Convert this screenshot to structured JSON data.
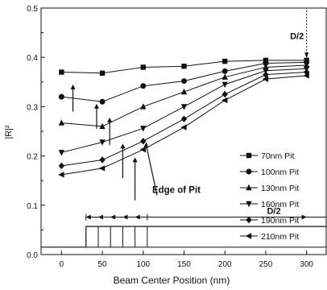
{
  "chart_data": {
    "type": "line",
    "title": "",
    "xlabel": "Beam Center Position (nm)",
    "ylabel": "|R|²",
    "xlim": [
      -25,
      325
    ],
    "ylim": [
      0.0,
      0.5
    ],
    "xticks": [
      0,
      50,
      100,
      150,
      200,
      250,
      300
    ],
    "yticks": [
      0.0,
      0.1,
      0.2,
      0.3,
      0.4,
      0.5
    ],
    "grid": false,
    "legend_position": "right",
    "x": [
      0,
      50,
      100,
      150,
      200,
      250,
      300
    ],
    "series": [
      {
        "name": "70nm  Pit",
        "marker": "square",
        "values": [
          0.37,
          0.368,
          0.38,
          0.382,
          0.392,
          0.394,
          0.394
        ]
      },
      {
        "name": "100nm Pit",
        "marker": "circle",
        "values": [
          0.32,
          0.31,
          0.342,
          0.352,
          0.372,
          0.388,
          0.39
        ]
      },
      {
        "name": "130nm Pit",
        "marker": "triangle-up",
        "values": [
          0.267,
          0.26,
          0.3,
          0.33,
          0.36,
          0.38,
          0.384
        ]
      },
      {
        "name": "160nm Pit",
        "marker": "triangle-down",
        "values": [
          0.207,
          0.228,
          0.256,
          0.3,
          0.345,
          0.373,
          0.377
        ]
      },
      {
        "name": "190nm Pit",
        "marker": "diamond",
        "values": [
          0.18,
          0.192,
          0.23,
          0.275,
          0.325,
          0.365,
          0.37
        ]
      },
      {
        "name": "210nm Pit",
        "marker": "triangle-left",
        "values": [
          0.162,
          0.175,
          0.213,
          0.258,
          0.313,
          0.356,
          0.363
        ]
      }
    ],
    "pit_edges": [
      30,
      45,
      60,
      75,
      90,
      105
    ],
    "annotations": {
      "edge_label": "Edge of Pit",
      "d2_top": "D/2",
      "d2_bottom": "D/2"
    }
  }
}
